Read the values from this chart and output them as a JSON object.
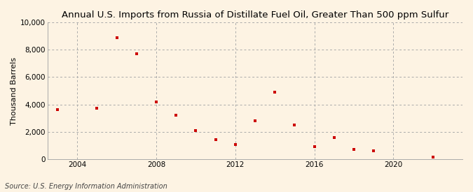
{
  "title": "Annual U.S. Imports from Russia of Distillate Fuel Oil, Greater Than 500 ppm Sulfur",
  "ylabel": "Thousand Barrels",
  "source": "Source: U.S. Energy Information Administration",
  "background_color": "#fdf3e3",
  "plot_bg_color": "#fdf3e3",
  "marker_color": "#cc0000",
  "years": [
    2003,
    2005,
    2006,
    2007,
    2008,
    2009,
    2010,
    2011,
    2012,
    2013,
    2014,
    2015,
    2016,
    2017,
    2018,
    2019,
    2022
  ],
  "values": [
    3600,
    3700,
    8900,
    7700,
    4200,
    3200,
    2100,
    1450,
    1050,
    2800,
    4900,
    2500,
    900,
    1600,
    700,
    600,
    150
  ],
  "ylim": [
    0,
    10000
  ],
  "yticks": [
    0,
    2000,
    4000,
    6000,
    8000,
    10000
  ],
  "xlim": [
    2002.5,
    2023.5
  ],
  "xticks": [
    2004,
    2008,
    2012,
    2016,
    2020
  ],
  "vline_positions": [
    2004,
    2008,
    2012,
    2016,
    2020
  ],
  "title_fontsize": 9.5,
  "ylabel_fontsize": 8,
  "tick_fontsize": 7.5,
  "source_fontsize": 7
}
